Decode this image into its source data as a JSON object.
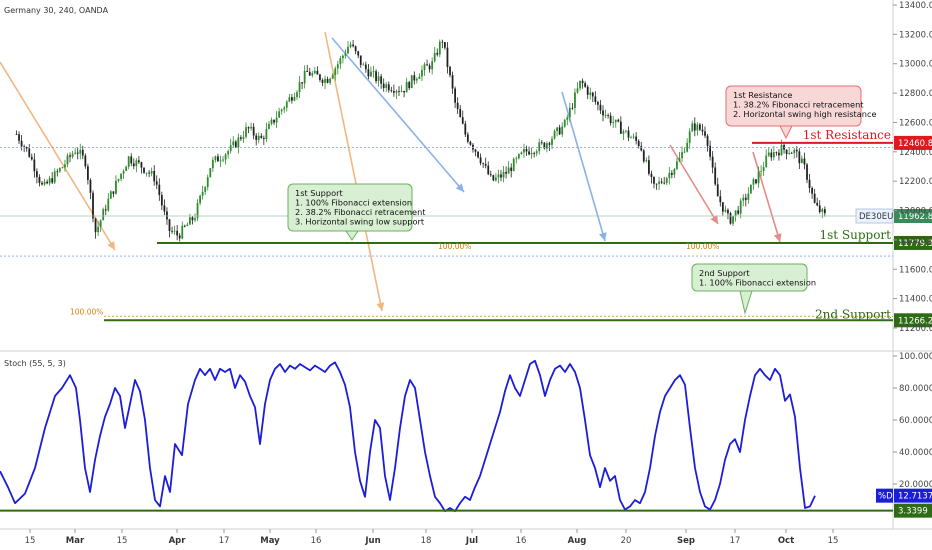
{
  "header": {
    "symbol_title": "Germany 30, 240, OANDA"
  },
  "colors": {
    "candle_up": "#2e8b2e",
    "candle_down": "#222222",
    "resistance": "#e0191e",
    "support": "#2e6b14",
    "stoch": "#1c1cdb",
    "arrow_blue": "#8ab2e8",
    "arrow_red": "#e88a8a",
    "arrow_orange": "#f3b680",
    "note_green_bg": "#d9efd3",
    "note_green_border": "#6bb05d",
    "note_red_bg": "#f8d7d7",
    "note_red_border": "#e07070",
    "fib": "#d9a11f"
  },
  "chart_data": [
    {
      "type": "candlestick",
      "title": "Germany 30, 240, OANDA",
      "x_ticks": [
        "15",
        "Mar",
        "15",
        "Apr",
        "17",
        "May",
        "16",
        "Jun",
        "18",
        "Jul",
        "16",
        "Aug",
        "20",
        "Sep",
        "17",
        "Oct",
        "15"
      ],
      "y_ticks": [
        "13400.0",
        "13200.0",
        "13000.0",
        "12800.0",
        "12600.0",
        "12400.0",
        "12200.0",
        "12000.0",
        "11800.0",
        "11600.0",
        "11400.0",
        "11200.0"
      ],
      "ylim": [
        11100,
        13420
      ],
      "close_path": [
        [
          "Feb 6",
          12520
        ],
        [
          "Feb 10",
          12380
        ],
        [
          "Feb 14",
          12150
        ],
        [
          "Feb 20",
          12300
        ],
        [
          "Feb 24",
          12420
        ],
        [
          "Feb 27",
          12330
        ],
        [
          "Mar 2",
          11850
        ],
        [
          "Mar 6",
          12080
        ],
        [
          "Mar 12",
          12360
        ],
        [
          "Mar 16",
          12300
        ],
        [
          "Mar 20",
          12220
        ],
        [
          "Mar 24",
          11870
        ],
        [
          "Mar 27",
          11830
        ],
        [
          "Apr 1",
          11960
        ],
        [
          "Apr 6",
          12320
        ],
        [
          "Apr 12",
          12420
        ],
        [
          "Apr 17",
          12560
        ],
        [
          "Apr 21",
          12480
        ],
        [
          "Apr 26",
          12650
        ],
        [
          "May 1",
          12800
        ],
        [
          "May 5",
          12940
        ],
        [
          "May 11",
          12890
        ],
        [
          "May 15",
          13020
        ],
        [
          "May 18",
          13140
        ],
        [
          "May 22",
          12980
        ],
        [
          "May 28",
          12860
        ],
        [
          "Jun 3",
          12820
        ],
        [
          "Jun 8",
          12940
        ],
        [
          "Jun 12",
          13000
        ],
        [
          "Jun 15",
          13170
        ],
        [
          "Jun 19",
          12720
        ],
        [
          "Jun 22",
          12520
        ],
        [
          "Jun 26",
          12380
        ],
        [
          "Jun 30",
          12200
        ],
        [
          "Jul 4",
          12250
        ],
        [
          "Jul 10",
          12400
        ],
        [
          "Jul 16",
          12450
        ],
        [
          "Jul 22",
          12580
        ],
        [
          "Jul 27",
          12880
        ],
        [
          "Aug 1",
          12720
        ],
        [
          "Aug 5",
          12620
        ],
        [
          "Aug 10",
          12520
        ],
        [
          "Aug 14",
          12450
        ],
        [
          "Aug 18",
          12150
        ],
        [
          "Aug 22",
          12230
        ],
        [
          "Aug 26",
          12350
        ],
        [
          "Aug 30",
          12580
        ],
        [
          "Sep 3",
          12530
        ],
        [
          "Sep 6",
          12120
        ],
        [
          "Sep 10",
          11930
        ],
        [
          "Sep 14",
          12050
        ],
        [
          "Sep 18",
          12210
        ],
        [
          "Sep 22",
          12380
        ],
        [
          "Sep 26",
          12420
        ],
        [
          "Sep 30",
          12400
        ],
        [
          "Oct 3",
          12280
        ],
        [
          "Oct 6",
          12030
        ],
        [
          "Oct 9",
          11962.8
        ]
      ],
      "levels": [
        {
          "name": "1st Resistance",
          "value": 12460.8,
          "price_tag": "12460.8"
        },
        {
          "name": "1st Support",
          "value": 11779.3,
          "price_tag": "11779.3"
        },
        {
          "name": "2nd Support",
          "value": 11266.2,
          "price_tag": "11266.2"
        }
      ],
      "last_price": {
        "label": "DE30EUR",
        "value": "11962.8"
      },
      "fib_labels": [
        "100.00%",
        "100.00%",
        "100.00%"
      ],
      "annotations": [
        {
          "id": "first-resistance",
          "lines": [
            "1st Resistance",
            "1. 38.2% Fibonacci retracement",
            "2. Horizontal swing high resistance"
          ]
        },
        {
          "id": "first-support",
          "lines": [
            "1st Support",
            "1. 100% Fibonacci extension",
            "2. 38.2%  Fibonacci retracement",
            "3. Horizontal swing low support"
          ]
        },
        {
          "id": "second-support",
          "lines": [
            "2nd Support",
            "1. 100% Fibonacci extension"
          ]
        }
      ]
    },
    {
      "type": "line",
      "title": "Stoch (55, 5, 3)",
      "y_ticks": [
        "100.0000",
        "80.0000",
        "60.0000",
        "40.0000",
        "20.0000"
      ],
      "ylim": [
        0,
        100
      ],
      "series": [
        {
          "name": "%D",
          "values": [
            [
              0,
              28
            ],
            [
              8,
              18
            ],
            [
              15,
              8
            ],
            [
              25,
              14
            ],
            [
              35,
              30
            ],
            [
              45,
              55
            ],
            [
              55,
              75
            ],
            [
              62,
              80
            ],
            [
              70,
              88
            ],
            [
              76,
              80
            ],
            [
              80,
              60
            ],
            [
              85,
              30
            ],
            [
              90,
              15
            ],
            [
              95,
              35
            ],
            [
              100,
              50
            ],
            [
              105,
              62
            ],
            [
              110,
              70
            ],
            [
              115,
              80
            ],
            [
              120,
              75
            ],
            [
              125,
              55
            ],
            [
              130,
              70
            ],
            [
              135,
              85
            ],
            [
              140,
              78
            ],
            [
              145,
              60
            ],
            [
              150,
              30
            ],
            [
              155,
              10
            ],
            [
              160,
              6
            ],
            [
              165,
              25
            ],
            [
              170,
              15
            ],
            [
              175,
              45
            ],
            [
              182,
              38
            ],
            [
              188,
              70
            ],
            [
              195,
              85
            ],
            [
              200,
              92
            ],
            [
              205,
              88
            ],
            [
              210,
              92
            ],
            [
              215,
              85
            ],
            [
              220,
              92
            ],
            [
              225,
              90
            ],
            [
              230,
              92
            ],
            [
              235,
              80
            ],
            [
              240,
              88
            ],
            [
              245,
              84
            ],
            [
              250,
              75
            ],
            [
              255,
              68
            ],
            [
              260,
              45
            ],
            [
              265,
              70
            ],
            [
              270,
              85
            ],
            [
              275,
              92
            ],
            [
              280,
              95
            ],
            [
              285,
              90
            ],
            [
              290,
              94
            ],
            [
              295,
              92
            ],
            [
              300,
              95
            ],
            [
              305,
              93
            ],
            [
              310,
              91
            ],
            [
              315,
              94
            ],
            [
              320,
              92
            ],
            [
              325,
              90
            ],
            [
              330,
              94
            ],
            [
              335,
              96
            ],
            [
              340,
              90
            ],
            [
              345,
              82
            ],
            [
              350,
              68
            ],
            [
              355,
              40
            ],
            [
              360,
              22
            ],
            [
              365,
              12
            ],
            [
              370,
              40
            ],
            [
              375,
              60
            ],
            [
              380,
              55
            ],
            [
              385,
              25
            ],
            [
              390,
              10
            ],
            [
              395,
              30
            ],
            [
              400,
              55
            ],
            [
              405,
              75
            ],
            [
              410,
              85
            ],
            [
              415,
              80
            ],
            [
              420,
              60
            ],
            [
              425,
              40
            ],
            [
              430,
              25
            ],
            [
              435,
              12
            ],
            [
              440,
              8
            ],
            [
              445,
              3
            ],
            [
              450,
              5
            ],
            [
              455,
              3
            ],
            [
              460,
              8
            ],
            [
              465,
              12
            ],
            [
              470,
              10
            ],
            [
              475,
              18
            ],
            [
              480,
              25
            ],
            [
              485,
              35
            ],
            [
              490,
              45
            ],
            [
              495,
              55
            ],
            [
              500,
              65
            ],
            [
              505,
              78
            ],
            [
              510,
              88
            ],
            [
              515,
              80
            ],
            [
              520,
              75
            ],
            [
              525,
              85
            ],
            [
              530,
              95
            ],
            [
              535,
              97
            ],
            [
              540,
              88
            ],
            [
              545,
              75
            ],
            [
              550,
              85
            ],
            [
              555,
              92
            ],
            [
              560,
              94
            ],
            [
              565,
              90
            ],
            [
              570,
              95
            ],
            [
              575,
              90
            ],
            [
              580,
              80
            ],
            [
              585,
              60
            ],
            [
              590,
              38
            ],
            [
              595,
              30
            ],
            [
              600,
              18
            ],
            [
              605,
              30
            ],
            [
              610,
              22
            ],
            [
              615,
              25
            ],
            [
              620,
              10
            ],
            [
              625,
              4
            ],
            [
              630,
              6
            ],
            [
              635,
              10
            ],
            [
              640,
              8
            ],
            [
              645,
              15
            ],
            [
              650,
              30
            ],
            [
              655,
              50
            ],
            [
              660,
              65
            ],
            [
              665,
              75
            ],
            [
              670,
              80
            ],
            [
              675,
              85
            ],
            [
              680,
              88
            ],
            [
              685,
              82
            ],
            [
              690,
              55
            ],
            [
              695,
              30
            ],
            [
              700,
              15
            ],
            [
              705,
              6
            ],
            [
              710,
              4
            ],
            [
              715,
              10
            ],
            [
              720,
              20
            ],
            [
              725,
              35
            ],
            [
              730,
              45
            ],
            [
              735,
              48
            ],
            [
              740,
              40
            ],
            [
              745,
              60
            ],
            [
              750,
              75
            ],
            [
              755,
              88
            ],
            [
              760,
              92
            ],
            [
              765,
              88
            ],
            [
              770,
              85
            ],
            [
              775,
              92
            ],
            [
              780,
              88
            ],
            [
              785,
              72
            ],
            [
              790,
              76
            ],
            [
              795,
              62
            ],
            [
              800,
              30
            ],
            [
              805,
              5
            ],
            [
              810,
              6
            ],
            [
              815,
              12.7137
            ]
          ]
        }
      ],
      "current_value": {
        "label": "%D",
        "value": "12.7137"
      },
      "support_level": {
        "value": 3.3399,
        "label": "3.3399"
      }
    }
  ]
}
